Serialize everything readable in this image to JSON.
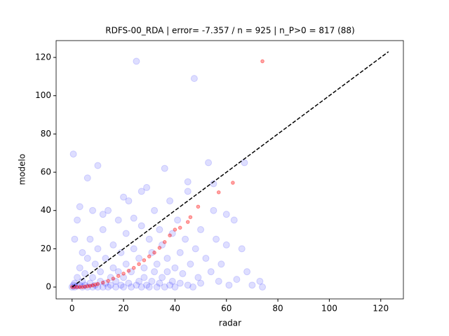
{
  "chart_data": {
    "type": "scatter",
    "title": "RDFS-00_RDA | error= -7.357 / n = 925 | n_P>0 = 817 (88)",
    "x_label": "radar",
    "y_label": "modelo",
    "xlim": [
      -6.2,
      128.8
    ],
    "ylim": [
      -6.2,
      128.8
    ],
    "xticks": [
      0,
      20,
      40,
      60,
      80,
      100,
      120
    ],
    "yticks": [
      0,
      20,
      40,
      60,
      80,
      100,
      120
    ],
    "reference_line": {
      "x": [
        0,
        123
      ],
      "values": [
        0,
        123
      ],
      "color": "#000000"
    },
    "series": [
      {
        "color": "#0000ff",
        "x": [
          0,
          0.5,
          1,
          1,
          2,
          2,
          3,
          3,
          4,
          4,
          5,
          5,
          6,
          6,
          7,
          7,
          8,
          8,
          9,
          9,
          10,
          10,
          11,
          11,
          12,
          12,
          13,
          13,
          14,
          14,
          15,
          15,
          16,
          16,
          17,
          17,
          18,
          18,
          19,
          19,
          20,
          20,
          21,
          21,
          22,
          22,
          23,
          23,
          24,
          24,
          25,
          25,
          26,
          26,
          27,
          27,
          28,
          28,
          29,
          29,
          30,
          30,
          31,
          31,
          32,
          32,
          33,
          33,
          34,
          34,
          35,
          35,
          36,
          36,
          37,
          37,
          38,
          38,
          39,
          39,
          40,
          40,
          41,
          42,
          42,
          43,
          44,
          45,
          45,
          46,
          47,
          47.5,
          48,
          49,
          50,
          50,
          52,
          53,
          54,
          55,
          56,
          57,
          58,
          60,
          61,
          63,
          64,
          66,
          67,
          68,
          70,
          73,
          74,
          0.5,
          10,
          1,
          2,
          3,
          4,
          8,
          12,
          6,
          20,
          27,
          45,
          55,
          60
        ],
        "values": [
          0,
          1,
          0,
          2,
          0.5,
          5,
          1,
          10,
          0,
          3,
          1,
          7,
          0,
          15,
          2,
          25,
          0,
          5,
          1,
          12,
          0,
          20,
          3,
          8,
          0,
          30,
          2,
          15,
          0,
          40,
          5,
          1,
          10,
          22,
          0,
          3,
          35,
          8,
          1,
          18,
          0,
          5,
          12,
          28,
          2,
          45,
          0,
          8,
          20,
          36,
          1,
          118,
          3,
          15,
          0,
          32,
          10,
          5,
          52,
          1,
          0,
          25,
          18,
          3,
          40,
          8,
          0,
          12,
          30,
          2,
          22,
          5,
          62,
          0,
          15,
          8,
          45,
          1,
          28,
          3,
          10,
          0,
          35,
          2,
          18,
          7,
          25,
          1,
          50,
          12,
          0,
          109,
          20,
          5,
          2,
          30,
          15,
          65,
          8,
          54,
          25,
          3,
          12,
          22,
          1,
          35,
          4,
          20,
          65,
          8,
          1,
          3,
          0,
          69.5,
          63.5,
          25,
          35,
          42,
          18,
          40,
          38,
          57,
          47,
          50,
          55,
          40,
          38
        ]
      },
      {
        "color": "#ff0000",
        "x": [
          0,
          1,
          2,
          3,
          4,
          5,
          6,
          7,
          8,
          9,
          10,
          12,
          14,
          16,
          18,
          20,
          22,
          24,
          26,
          28,
          30,
          32,
          34,
          36,
          38,
          40,
          42,
          45,
          46,
          49,
          57,
          62.5,
          74
        ],
        "values": [
          0,
          0,
          0,
          0,
          0,
          0.2,
          0.4,
          0.6,
          0.9,
          1.2,
          1.6,
          2.3,
          3.2,
          4.4,
          5.8,
          7,
          8.5,
          10,
          12,
          14,
          16,
          18,
          20.5,
          23.5,
          27,
          30,
          31,
          34,
          36.5,
          42,
          49.5,
          54.5,
          118
        ]
      }
    ]
  }
}
